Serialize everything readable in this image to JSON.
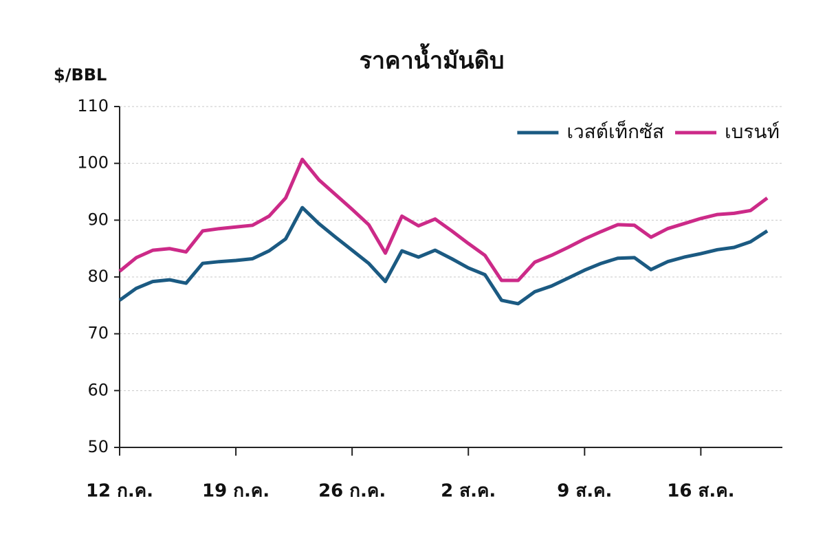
{
  "chart_data": {
    "type": "line",
    "title": "ราคาน้ำมันดิบ",
    "ylabel": "$/BBL",
    "categories": [
      "12 ก.ค.",
      null,
      null,
      null,
      null,
      null,
      null,
      "19 ก.ค.",
      null,
      null,
      null,
      null,
      null,
      null,
      "26 ก.ค.",
      null,
      null,
      null,
      null,
      null,
      null,
      "2 ส.ค.",
      null,
      null,
      null,
      null,
      null,
      null,
      "9 ส.ค.",
      null,
      null,
      null,
      null,
      null,
      null,
      "16 ส.ค.",
      null,
      null,
      null,
      null
    ],
    "series": [
      {
        "name": "เวสต์เท็กซัส",
        "color": "#1b5a82",
        "values": [
          75.9,
          78,
          79.2,
          79.5,
          78.9,
          82.4,
          82.7,
          82.9,
          83.2,
          84.6,
          86.7,
          92.2,
          89.4,
          87,
          84.7,
          82.4,
          79.2,
          84.6,
          83.5,
          84.7,
          83.2,
          81.6,
          80.4,
          75.9,
          75.3,
          77.4,
          78.4,
          79.8,
          81.2,
          82.4,
          83.3,
          83.4,
          81.3,
          82.7,
          83.5,
          84.1,
          84.8,
          85.2,
          86.2,
          88.1
        ]
      },
      {
        "name": "เบรนท์",
        "color": "#cc2a88",
        "values": [
          81,
          83.4,
          84.7,
          85,
          84.4,
          88.1,
          88.5,
          88.8,
          89.1,
          90.7,
          93.9,
          100.7,
          97.1,
          94.5,
          91.9,
          89.2,
          84.2,
          90.7,
          89,
          90.2,
          88.1,
          85.9,
          83.8,
          79.4,
          79.4,
          82.6,
          83.8,
          85.2,
          86.7,
          88,
          89.2,
          89.1,
          87,
          88.5,
          89.4,
          90.3,
          91,
          91.2,
          91.7,
          93.9
        ]
      }
    ],
    "ylim": [
      50,
      110
    ],
    "yticks": [
      50,
      60,
      70,
      80,
      90,
      100,
      110
    ],
    "grid": true,
    "legend": "upper right"
  }
}
